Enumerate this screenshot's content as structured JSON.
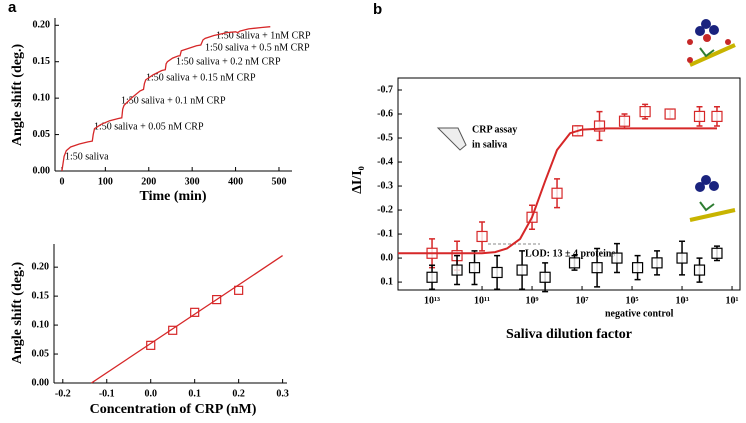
{
  "chart_data": [
    {
      "type": "line",
      "panel": "a",
      "xlabel": "Time (min)",
      "ylabel": "Angle shift (deg.)",
      "xlim": [
        -16,
        530
      ],
      "ylim": [
        0,
        0.21
      ],
      "xticks": [
        0,
        100,
        200,
        300,
        400,
        500
      ],
      "yticks": [
        {
          "value": 0,
          "label": "0.00"
        },
        0.05,
        {
          "value": 0.1,
          "label": "0.10"
        },
        0.15,
        {
          "value": 0.2,
          "label": "0.20"
        }
      ],
      "series": [
        {
          "type": "line",
          "color": "#d62728",
          "x": [
            0,
            5,
            10,
            20,
            40,
            60,
            70,
            72,
            75,
            90,
            110,
            130,
            138,
            140,
            143,
            160,
            180,
            188,
            190,
            193,
            210,
            230,
            238,
            240,
            243,
            255,
            268,
            272,
            275,
            290,
            310,
            320,
            325,
            330,
            350,
            380,
            400,
            405,
            410,
            430,
            460,
            480
          ],
          "values": [
            0,
            0.02,
            0.028,
            0.033,
            0.037,
            0.04,
            0.041,
            0.05,
            0.058,
            0.064,
            0.069,
            0.072,
            0.073,
            0.085,
            0.09,
            0.1,
            0.11,
            0.112,
            0.12,
            0.125,
            0.132,
            0.138,
            0.139,
            0.147,
            0.15,
            0.155,
            0.158,
            0.158,
            0.165,
            0.168,
            0.172,
            0.173,
            0.18,
            0.182,
            0.186,
            0.19,
            0.191,
            0.19,
            0.192,
            0.195,
            0.197,
            0.198
          ]
        }
      ],
      "annotations": [
        "1:50 saliva",
        "1:50 saliva + 0.05 nM CRP",
        "1:50 saliva + 0.1 nM CRP",
        "1:50 saliva + 0.15 nM CRP",
        "1:50 saliva + 0.2 nM CRP",
        "1:50 saliva + 0.5 nM CRP",
        "1:50 saliva + 1nM CRP"
      ]
    },
    {
      "type": "scatter",
      "xlabel": "Concentration of  CRP (nM)",
      "ylabel": "Angle shift (deg.)",
      "xlim": [
        -0.22,
        0.31
      ],
      "ylim": [
        0,
        0.24
      ],
      "xticks": [
        -0.2,
        -0.1,
        {
          "value": 0,
          "label": "0.0"
        },
        0.1,
        0.2,
        0.3
      ],
      "yticks": [
        {
          "value": 0,
          "label": "0.00"
        },
        0.05,
        {
          "value": 0.1,
          "label": "0.10"
        },
        0.15,
        {
          "value": 0.2,
          "label": "0.20"
        }
      ],
      "series": [
        {
          "type": "scatter",
          "color": "#d62728",
          "x": [
            0,
            0.05,
            0.1,
            0.15,
            0.2
          ],
          "values": [
            0.065,
            0.091,
            0.122,
            0.144,
            0.16
          ]
        },
        {
          "type": "line",
          "color": "#d62728",
          "x": [
            -0.135,
            0.3
          ],
          "values": [
            0,
            0.22
          ]
        }
      ]
    },
    {
      "type": "scatter",
      "panel": "b",
      "xlabel": "Saliva dilution factor",
      "ylabel": "ΔI/I₀",
      "xscale": "log",
      "xlim": [
        230000000000000.0,
        4.8
      ],
      "ylim": [
        0.133,
        -0.75
      ],
      "xticks": [
        {
          "value": 10000000000000.0,
          "label": "10¹³"
        },
        {
          "value": 100000000000.0,
          "label": "10¹¹"
        },
        {
          "value": 1000000000.0,
          "label": "10⁹"
        },
        {
          "value": 10000000.0,
          "label": "10⁷"
        },
        {
          "value": 100000.0,
          "label": "10⁵"
        },
        {
          "value": 1000.0,
          "label": "10³"
        },
        {
          "value": 10,
          "label": "10¹"
        }
      ],
      "yticks": [
        -0.7,
        -0.6,
        -0.5,
        -0.4,
        -0.3,
        -0.2,
        -0.1,
        {
          "value": 0,
          "label": "0.0"
        },
        0.1
      ],
      "series": [
        {
          "type": "scatter",
          "color": "#d62728",
          "x": [
            10000000000000.0,
            1000000000000.0,
            100000000000.0,
            1000000000.0,
            100000000.0,
            15000000.0,
            2000000.0,
            200000.0,
            30000.0,
            3000.0,
            200,
            40
          ],
          "values": [
            -0.02,
            -0.01,
            -0.09,
            -0.17,
            -0.27,
            -0.53,
            -0.55,
            -0.57,
            -0.61,
            -0.6,
            -0.59,
            -0.59
          ],
          "errors": [
            0.06,
            0.06,
            0.06,
            0.05,
            0.06,
            0.02,
            0.06,
            0.03,
            0.03,
            0.02,
            0.04,
            0.04
          ]
        },
        {
          "type": "scatter",
          "color": "#000000",
          "x": [
            10000000000000.0,
            1000000000000.0,
            200000000000.0,
            25000000000.0,
            2500000000.0,
            300000000.0,
            20000000.0,
            2500000.0,
            400000.0,
            60000.0,
            10000.0,
            1000.0,
            200,
            40
          ],
          "values": [
            0.08,
            0.05,
            0.04,
            0.06,
            0.05,
            0.08,
            0.02,
            0.04,
            0,
            0.04,
            0.02,
            0,
            0.05,
            -0.02
          ],
          "errors": [
            0.05,
            0.06,
            0.07,
            0.07,
            0.08,
            0.06,
            0.03,
            0.08,
            0.06,
            0.05,
            0.05,
            0.07,
            0.05,
            0.03
          ]
        },
        {
          "type": "line",
          "color": "#d62728",
          "x": [
            230000000000000.0,
            1000000000000.0,
            100000000000.0,
            30000000000.0,
            10000000000.0,
            3000000000.0,
            1000000000.0,
            300000000.0,
            100000000.0,
            30000000.0,
            10000000.0,
            1000000.0,
            10000.0,
            40
          ],
          "values": [
            -0.02,
            -0.02,
            -0.02,
            -0.025,
            -0.04,
            -0.08,
            -0.17,
            -0.32,
            -0.45,
            -0.52,
            -0.535,
            -0.54,
            -0.54,
            -0.54
          ]
        }
      ],
      "annotations": [
        "CRP assay",
        "in saliva",
        "LOD: 13 ± 4 proteins",
        "negative control"
      ]
    }
  ]
}
